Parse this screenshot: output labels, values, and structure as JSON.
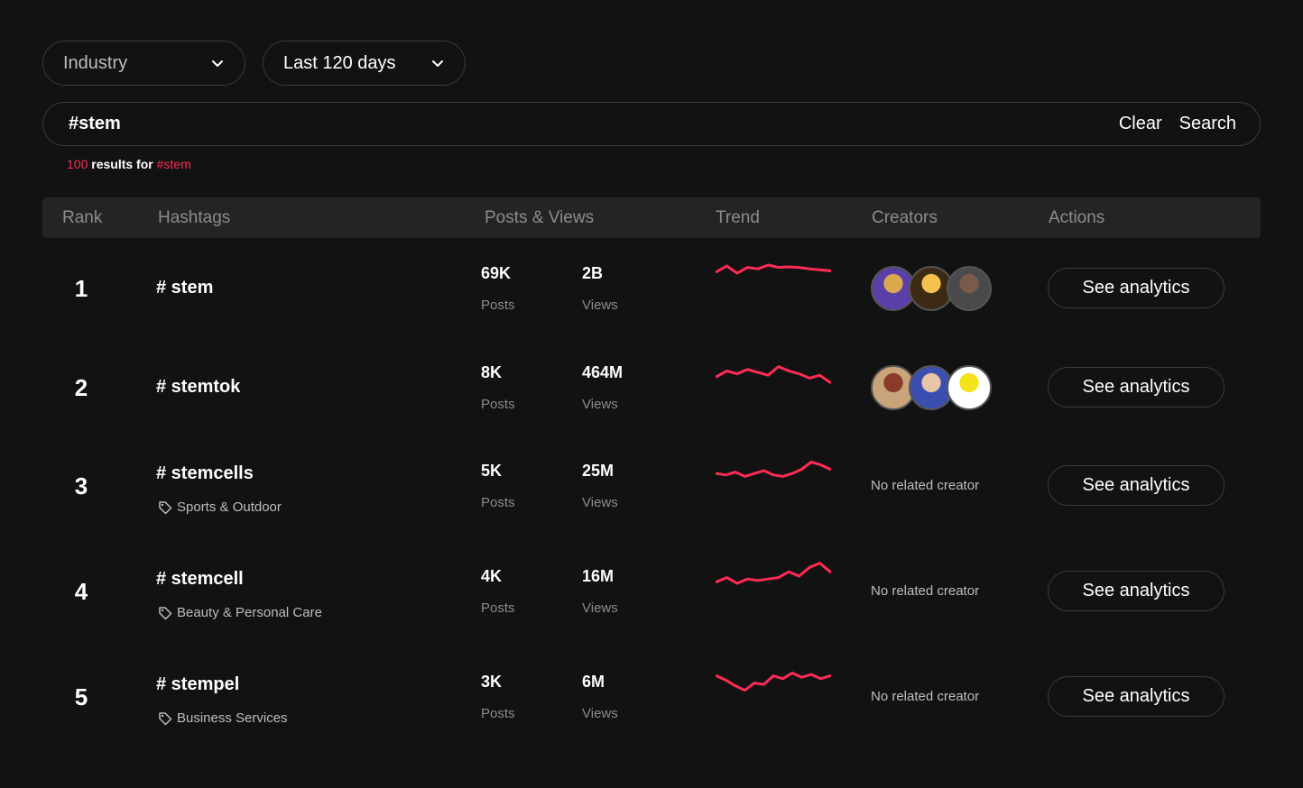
{
  "filters": {
    "industry_label": "Industry",
    "period_label": "Last 120 days"
  },
  "search": {
    "value": "#stem",
    "clear_label": "Clear",
    "search_label": "Search"
  },
  "results": {
    "count": "100",
    "text": "results for",
    "query": "#stem"
  },
  "table": {
    "headers": {
      "rank": "Rank",
      "hashtags": "Hashtags",
      "posts_views": "Posts & Views",
      "trend": "Trend",
      "creators": "Creators",
      "actions": "Actions"
    },
    "posts_unit": "Posts",
    "views_unit": "Views",
    "no_creator_text": "No related creator",
    "action_label": "See analytics",
    "rows": [
      {
        "rank": "1",
        "hashtag": "# stem",
        "category": null,
        "posts": "69K",
        "views": "2B",
        "trend": [
          0.45,
          0.25,
          0.5,
          0.3,
          0.35,
          0.22,
          0.3,
          0.28,
          0.3,
          0.35,
          0.38,
          0.42
        ],
        "creators": [
          "creator-avatar-1",
          "creator-avatar-2",
          "creator-avatar-3"
        ]
      },
      {
        "rank": "2",
        "hashtag": "# stemtok",
        "category": null,
        "posts": "8K",
        "views": "464M",
        "trend": [
          0.65,
          0.45,
          0.55,
          0.4,
          0.5,
          0.6,
          0.3,
          0.45,
          0.55,
          0.7,
          0.6,
          0.85
        ],
        "creators": [
          "creator-avatar-4",
          "creator-avatar-5",
          "creator-avatar-6"
        ]
      },
      {
        "rank": "3",
        "hashtag": "# stemcells",
        "category": "Sports & Outdoor",
        "posts": "5K",
        "views": "25M",
        "trend": [
          0.6,
          0.65,
          0.55,
          0.7,
          0.6,
          0.5,
          0.65,
          0.7,
          0.6,
          0.45,
          0.2,
          0.3,
          0.45
        ],
        "creators": []
      },
      {
        "rank": "4",
        "hashtag": "# stemcell",
        "category": "Beauty & Personal Care",
        "posts": "4K",
        "views": "16M",
        "trend": [
          0.7,
          0.55,
          0.75,
          0.6,
          0.65,
          0.6,
          0.55,
          0.35,
          0.5,
          0.2,
          0.05,
          0.35
        ],
        "creators": []
      },
      {
        "rank": "5",
        "hashtag": "# stempel",
        "category": "Business Services",
        "posts": "3K",
        "views": "6M",
        "trend": [
          0.3,
          0.45,
          0.65,
          0.8,
          0.55,
          0.6,
          0.3,
          0.4,
          0.2,
          0.35,
          0.25,
          0.4,
          0.3
        ],
        "creators": []
      }
    ]
  },
  "colors": {
    "accent": "#fe2c55",
    "background": "#121212",
    "header_bg": "#242424"
  }
}
